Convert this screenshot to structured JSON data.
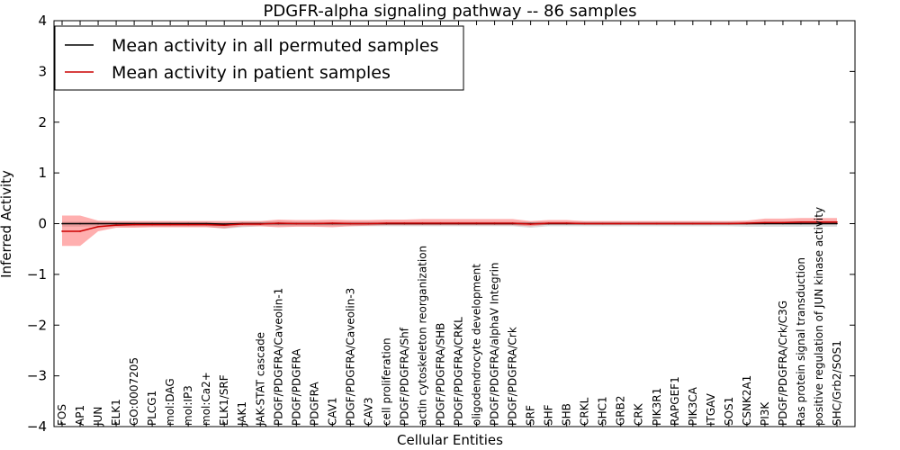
{
  "chart_data": {
    "type": "line",
    "title": "PDGFR-alpha signaling pathway -- 86 samples",
    "xlabel": "Cellular Entities",
    "ylabel": "Inferred Activity",
    "ylim": [
      -4,
      4
    ],
    "yticks": [
      -4,
      -3,
      -2,
      -1,
      0,
      1,
      2,
      3,
      4
    ],
    "ytick_labels": [
      "−4",
      "−3",
      "−2",
      "−1",
      "0",
      "1",
      "2",
      "3",
      "4"
    ],
    "legend_position": "top-left",
    "categories": [
      "FOS",
      "AP1",
      "JUN",
      "ELK1",
      "GO:0007205",
      "PLCG1",
      "mol:DAG",
      "mol:IP3",
      "mol:Ca2+",
      "ELK1/SRF",
      "JAK1",
      "JAK-STAT cascade",
      "PDGF/PDGFRA/Caveolin-1",
      "PDGF/PDGFRA",
      "PDGFRA",
      "CAV1",
      "PDGF/PDGFRA/Caveolin-3",
      "CAV3",
      "cell proliferation",
      "PDGF/PDGFRA/Shf",
      "actin cytoskeleton reorganization",
      "PDGF/PDGFRA/SHB",
      "PDGF/PDGFRA/CRKL",
      "oligodendrocyte development",
      "PDGF/PDGFRA/alphaV Integrin",
      "PDGF/PDGFRA/Crk",
      "SRF",
      "SHF",
      "SHB",
      "CRKL",
      "SHC1",
      "GRB2",
      "CRK",
      "PIK3R1",
      "RAPGEF1",
      "PIK3CA",
      "ITGAV",
      "SOS1",
      "CSNK2A1",
      "PI3K",
      "PDGF/PDGFRA/Crk/C3G",
      "Ras protein signal transduction",
      "positive regulation of JUN kinase activity",
      "SHC/Grb2/SOS1"
    ],
    "series": [
      {
        "name": "Mean activity in all permuted samples",
        "color": "#000000",
        "band_color": "#999999",
        "values": [
          0.0,
          0.0,
          0.0,
          0.0,
          0.0,
          0.0,
          0.0,
          0.0,
          0.0,
          -0.01,
          0.0,
          0.0,
          0.0,
          0.0,
          0.0,
          0.0,
          0.0,
          0.0,
          0.0,
          0.0,
          0.0,
          0.0,
          0.0,
          0.0,
          0.0,
          0.0,
          0.0,
          0.0,
          0.0,
          0.0,
          0.0,
          0.0,
          0.0,
          0.0,
          0.0,
          0.0,
          0.0,
          0.0,
          0.0,
          0.0,
          0.0,
          0.0,
          0.0,
          0.0
        ],
        "lower": [
          -0.06,
          -0.06,
          -0.05,
          -0.06,
          -0.06,
          -0.06,
          -0.06,
          -0.06,
          -0.06,
          -0.1,
          -0.07,
          -0.05,
          -0.05,
          -0.05,
          -0.05,
          -0.05,
          -0.05,
          -0.05,
          -0.05,
          -0.05,
          -0.05,
          -0.05,
          -0.05,
          -0.05,
          -0.05,
          -0.05,
          -0.08,
          -0.05,
          -0.05,
          -0.05,
          -0.05,
          -0.05,
          -0.05,
          -0.05,
          -0.05,
          -0.05,
          -0.05,
          -0.05,
          -0.06,
          -0.06,
          -0.06,
          -0.06,
          -0.06,
          -0.06
        ],
        "upper": [
          0.04,
          0.04,
          0.04,
          0.04,
          0.04,
          0.04,
          0.04,
          0.04,
          0.04,
          0.03,
          0.04,
          0.04,
          0.05,
          0.04,
          0.04,
          0.04,
          0.04,
          0.04,
          0.04,
          0.04,
          0.04,
          0.04,
          0.04,
          0.04,
          0.04,
          0.04,
          0.03,
          0.04,
          0.04,
          0.04,
          0.04,
          0.04,
          0.04,
          0.04,
          0.04,
          0.04,
          0.04,
          0.04,
          0.04,
          0.05,
          0.05,
          0.05,
          0.05,
          0.05
        ]
      },
      {
        "name": "Mean activity in patient samples",
        "color": "#cc0000",
        "band_color": "#ff4d4d",
        "values": [
          -0.15,
          -0.15,
          -0.06,
          -0.03,
          -0.02,
          -0.02,
          -0.02,
          -0.02,
          -0.02,
          -0.03,
          -0.01,
          -0.01,
          0.01,
          0.0,
          0.0,
          0.01,
          0.0,
          0.0,
          0.01,
          0.01,
          0.01,
          0.01,
          0.01,
          0.01,
          0.01,
          0.01,
          -0.01,
          0.01,
          0.01,
          0.0,
          0.0,
          0.0,
          0.0,
          0.0,
          0.0,
          0.0,
          0.0,
          0.0,
          0.01,
          0.02,
          0.02,
          0.03,
          0.03,
          0.03
        ],
        "lower": [
          -0.44,
          -0.44,
          -0.15,
          -0.08,
          -0.08,
          -0.07,
          -0.07,
          -0.07,
          -0.07,
          -0.09,
          -0.05,
          -0.05,
          -0.07,
          -0.06,
          -0.06,
          -0.07,
          -0.05,
          -0.04,
          -0.03,
          -0.03,
          -0.03,
          -0.03,
          -0.03,
          -0.03,
          -0.03,
          -0.03,
          -0.05,
          -0.02,
          -0.02,
          -0.02,
          -0.02,
          -0.02,
          -0.02,
          -0.02,
          -0.02,
          -0.02,
          -0.02,
          -0.02,
          -0.02,
          -0.01,
          -0.01,
          -0.01,
          -0.01,
          -0.01
        ],
        "upper": [
          0.16,
          0.16,
          0.06,
          0.05,
          0.05,
          0.05,
          0.05,
          0.05,
          0.05,
          0.05,
          0.05,
          0.05,
          0.08,
          0.07,
          0.07,
          0.08,
          0.07,
          0.07,
          0.08,
          0.08,
          0.09,
          0.09,
          0.09,
          0.09,
          0.09,
          0.09,
          0.05,
          0.07,
          0.07,
          0.05,
          0.05,
          0.05,
          0.05,
          0.05,
          0.05,
          0.05,
          0.05,
          0.05,
          0.06,
          0.1,
          0.1,
          0.11,
          0.11,
          0.11
        ]
      }
    ]
  }
}
